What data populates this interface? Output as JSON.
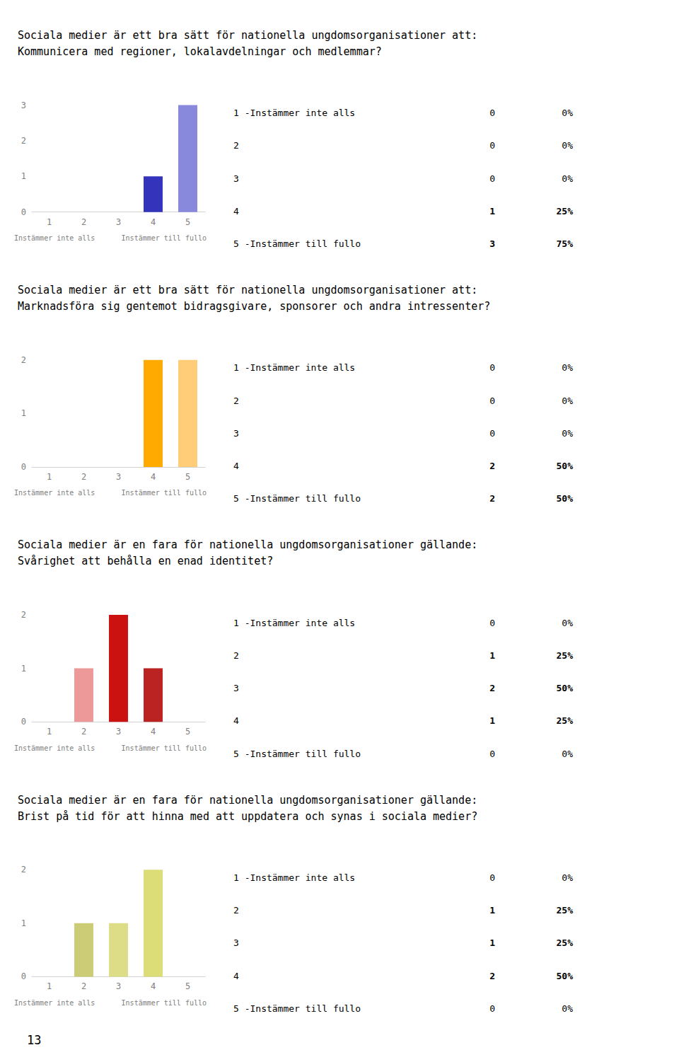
{
  "chart_data": [
    {
      "type": "bar",
      "title": "Sociala medier är ett bra sätt för nationella ungdomsorganisationer att:",
      "subtitle": "Kommunicera med regioner, lokalavdelningar och medlemmar?",
      "categories": [
        "1",
        "2",
        "3",
        "4",
        "5"
      ],
      "values": [
        0,
        0,
        0,
        1,
        3
      ],
      "colors": [
        "#6666cc",
        "#6666cc",
        "#6666cc",
        "#3333bb",
        "#8888dd"
      ],
      "ylim": [
        0,
        3
      ],
      "yticks": [
        0,
        1,
        2,
        3
      ],
      "grid": false,
      "annotations": [
        "Instämmer inte alls",
        "Instämmer till fullo"
      ],
      "table_rows": [
        [
          "1 -Instämmer inte alls",
          "0",
          "0%"
        ],
        [
          "2",
          "0",
          "0%"
        ],
        [
          "3",
          "0",
          "0%"
        ],
        [
          "4",
          "1",
          "25%"
        ],
        [
          "5 -Instämmer till fullo",
          "3",
          "75%"
        ]
      ]
    },
    {
      "type": "bar",
      "title": "Sociala medier är ett bra sätt för nationella ungdomsorganisationer att:",
      "subtitle": "Marknadsföra sig gentemot bidragsgivare, sponsorer och andra intressenter?",
      "categories": [
        "1",
        "2",
        "3",
        "4",
        "5"
      ],
      "values": [
        0,
        0,
        0,
        2,
        2
      ],
      "colors": [
        "#ffaa00",
        "#ffaa00",
        "#ffaa00",
        "#ffaa00",
        "#ffcc77"
      ],
      "ylim": [
        0,
        2
      ],
      "yticks": [
        0,
        1,
        2
      ],
      "grid": false,
      "annotations": [
        "Instämmer inte alls",
        "Instämmer till fullo"
      ],
      "table_rows": [
        [
          "1 -Instämmer inte alls",
          "0",
          "0%"
        ],
        [
          "2",
          "0",
          "0%"
        ],
        [
          "3",
          "0",
          "0%"
        ],
        [
          "4",
          "2",
          "50%"
        ],
        [
          "5 -Instämmer till fullo",
          "2",
          "50%"
        ]
      ]
    },
    {
      "type": "bar",
      "title": "Sociala medier är en fara för nationella ungdomsorganisationer gällande:",
      "subtitle": "Svårighet att behålla en enad identitet?",
      "categories": [
        "1",
        "2",
        "3",
        "4",
        "5"
      ],
      "values": [
        0,
        1,
        2,
        1,
        0
      ],
      "colors": [
        "#dd5555",
        "#ee9999",
        "#cc1111",
        "#bb2222",
        "#dd5555"
      ],
      "ylim": [
        0,
        2
      ],
      "yticks": [
        0,
        1,
        2
      ],
      "grid": false,
      "annotations": [
        "Instämmer inte alls",
        "Instämmer till fullo"
      ],
      "table_rows": [
        [
          "1 -Instämmer inte alls",
          "0",
          "0%"
        ],
        [
          "2",
          "1",
          "25%"
        ],
        [
          "3",
          "2",
          "50%"
        ],
        [
          "4",
          "1",
          "25%"
        ],
        [
          "5 -Instämmer till fullo",
          "0",
          "0%"
        ]
      ]
    },
    {
      "type": "bar",
      "title": "Sociala medier är en fara för nationella ungdomsorganisationer gällande:",
      "subtitle": "Brist på tid för att hinna med att uppdatera och synas i sociala medier?",
      "categories": [
        "1",
        "2",
        "3",
        "4",
        "5"
      ],
      "values": [
        0,
        1,
        1,
        2,
        0
      ],
      "colors": [
        "#eeee99",
        "#cccc77",
        "#dddd88",
        "#dddd77",
        "#eeee99"
      ],
      "ylim": [
        0,
        2
      ],
      "yticks": [
        0,
        1,
        2
      ],
      "grid": false,
      "annotations": [
        "Instämmer inte alls",
        "Instämmer till fullo"
      ],
      "table_rows": [
        [
          "1 -Instämmer inte alls",
          "0",
          "0%"
        ],
        [
          "2",
          "1",
          "25%"
        ],
        [
          "3",
          "1",
          "25%"
        ],
        [
          "4",
          "2",
          "50%"
        ],
        [
          "5 -Instämmer till fullo",
          "0",
          "0%"
        ]
      ]
    }
  ],
  "annotations": [
    "13"
  ]
}
